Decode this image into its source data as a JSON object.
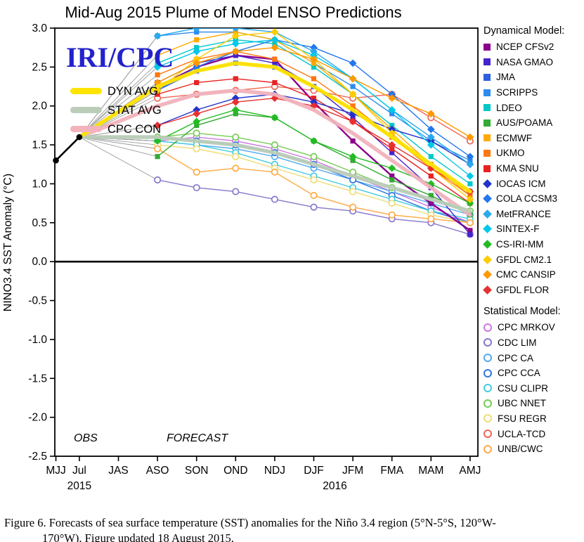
{
  "title": "Mid-Aug 2015 Plume of Model ENSO Predictions",
  "watermark": {
    "text": "IRI/CPC",
    "color": "#2222CC"
  },
  "obs_label": "OBS",
  "forecast_label": "FORECAST",
  "legend": {
    "dynamical_title": "Dynamical Model:",
    "statistical_title": "Statistical Model:"
  },
  "caption_line1": "Figure 6. Forecasts of sea surface temperature (SST) anomalies for the Niño 3.4 region (5°N-5°S, 120°W-",
  "caption_line2": "170°W). Figure updated 18 August 2015.",
  "chart_data": {
    "type": "line",
    "title": "Mid-Aug 2015 Plume of Model ENSO Predictions",
    "ylabel": "NINO3.4 SST Anomaly (°C)",
    "ylim": [
      -2.5,
      3.0
    ],
    "yticks": [
      "3.0",
      "2.5",
      "2.0",
      "1.5",
      "1.0",
      "0.5",
      "0.0",
      "-0.5",
      "-1.0",
      "-1.5",
      "-2.0",
      "-2.5"
    ],
    "x_categories": [
      "MJJ",
      "Jul",
      "JAS",
      "ASO",
      "SON",
      "OND",
      "NDJ",
      "DJF",
      "JFM",
      "FMA",
      "MAM",
      "AMJ"
    ],
    "forecast_categories": [
      "ASO",
      "SON",
      "OND",
      "NDJ",
      "DJF",
      "JFM",
      "FMA",
      "MAM",
      "AMJ"
    ],
    "year_labels": [
      {
        "text": "2015",
        "anchor": "Jul"
      },
      {
        "text": "2016",
        "anchor": "DJF"
      }
    ],
    "grid": false,
    "legend_position": "right",
    "observed": {
      "categories": [
        "MJJ",
        "Jul"
      ],
      "values": [
        1.3,
        1.6
      ],
      "color": "#000000"
    },
    "averages": [
      {
        "name": "DYN AVG",
        "color": "#FFE400",
        "values": [
          2.25,
          2.45,
          2.55,
          2.5,
          2.25,
          1.95,
          1.6,
          1.25,
          0.9
        ]
      },
      {
        "name": "STAT AVG",
        "color": "#BBCDB9",
        "values": [
          1.6,
          1.55,
          1.5,
          1.4,
          1.25,
          1.1,
          0.95,
          0.8,
          0.65
        ]
      },
      {
        "name": "CPC CON",
        "color": "#F2B3BC",
        "values": [
          2.0,
          2.15,
          2.2,
          2.15,
          1.95,
          1.65,
          1.3,
          0.95,
          0.6
        ]
      }
    ],
    "dynamical_series": [
      {
        "name": "NCEP CFSv2",
        "marker": "square",
        "color": "#8B008B",
        "values": [
          2.25,
          2.5,
          2.65,
          2.6,
          2.05,
          1.55,
          1.1,
          0.75,
          0.4
        ]
      },
      {
        "name": "NASA GMAO",
        "marker": "square",
        "color": "#4422CC",
        "values": [
          2.3,
          2.55,
          2.65,
          2.55,
          2.25,
          1.85,
          1.4,
          0.95,
          0.35
        ]
      },
      {
        "name": "JMA",
        "marker": "square",
        "color": "#2E5FE0",
        "values": [
          2.2,
          2.45,
          2.55,
          2.5,
          2.25,
          1.95,
          1.6,
          1.25,
          0.9
        ]
      },
      {
        "name": "SCRIPPS",
        "marker": "square",
        "color": "#2B8CEE",
        "values": [
          2.9,
          2.95,
          2.95,
          2.85,
          2.55,
          2.25,
          1.9,
          1.55,
          1.3
        ]
      },
      {
        "name": "LDEO",
        "marker": "square",
        "color": "#00C8C8",
        "values": [
          2.55,
          2.75,
          2.85,
          2.8,
          2.5,
          2.15,
          1.75,
          1.35,
          1.0
        ]
      },
      {
        "name": "AUS/POAMA",
        "marker": "square",
        "color": "#33AA33",
        "values": [
          1.35,
          1.75,
          1.9,
          1.85,
          1.55,
          1.3,
          1.05,
          0.85,
          0.6
        ]
      },
      {
        "name": "ECMWF",
        "marker": "square",
        "color": "#FFAA00",
        "values": [
          2.65,
          2.85,
          2.95,
          2.85,
          2.55,
          2.15,
          1.7,
          1.25,
          0.85
        ]
      },
      {
        "name": "UKMO",
        "marker": "square",
        "color": "#FF7711",
        "values": [
          2.4,
          2.6,
          2.7,
          2.6,
          2.35,
          2.0,
          1.6,
          1.2,
          0.85
        ]
      },
      {
        "name": "KMA SNU",
        "marker": "square",
        "color": "#E82222",
        "values": [
          2.15,
          2.3,
          2.35,
          2.3,
          2.1,
          1.8,
          1.45,
          1.1,
          0.75
        ]
      },
      {
        "name": "IOCAS ICM",
        "marker": "diamond",
        "color": "#2233CC",
        "values": [
          1.75,
          1.95,
          2.1,
          2.15,
          2.05,
          1.9,
          1.7,
          1.55,
          1.25
        ]
      },
      {
        "name": "COLA CCSM3",
        "marker": "diamond",
        "color": "#2277EE",
        "values": [
          2.2,
          2.5,
          2.7,
          2.85,
          2.75,
          2.55,
          2.15,
          1.7,
          1.35
        ]
      },
      {
        "name": "MetFRANCE",
        "marker": "diamond",
        "color": "#29A8EE",
        "values": [
          2.9,
          3.0,
          3.0,
          2.95,
          2.7,
          2.35,
          1.95,
          1.6,
          1.25
        ]
      },
      {
        "name": "SINTEX-F",
        "marker": "diamond",
        "color": "#00C8E8",
        "values": [
          2.5,
          2.7,
          2.8,
          2.85,
          2.65,
          2.35,
          1.95,
          1.5,
          1.1
        ]
      },
      {
        "name": "CS-IRI-MM",
        "marker": "diamond",
        "color": "#22BB22",
        "values": [
          1.55,
          1.8,
          1.95,
          1.85,
          1.55,
          1.35,
          1.2,
          1.0,
          0.75
        ]
      },
      {
        "name": "GFDL CM2.1",
        "marker": "diamond",
        "color": "#FFCC00",
        "values": [
          2.2,
          2.6,
          2.9,
          2.95,
          2.6,
          2.15,
          1.65,
          1.2,
          0.8
        ]
      },
      {
        "name": "CMC CANSIP",
        "marker": "diamond",
        "color": "#FF9900",
        "values": [
          2.3,
          2.55,
          2.7,
          2.75,
          2.6,
          2.35,
          2.1,
          1.9,
          1.6
        ]
      },
      {
        "name": "GFDL FLOR",
        "marker": "diamond",
        "color": "#E83030",
        "values": [
          1.75,
          1.9,
          2.05,
          2.1,
          2.0,
          1.8,
          1.5,
          1.2,
          0.9
        ]
      }
    ],
    "statistical_series": [
      {
        "name": "CPC MRKOV",
        "marker": "circle-open",
        "color": "#CC77DD",
        "values": [
          1.55,
          1.6,
          1.55,
          1.45,
          1.3,
          1.1,
          0.9,
          0.7,
          0.5
        ]
      },
      {
        "name": "CDC LIM",
        "marker": "circle-open",
        "color": "#8877CC",
        "values": [
          1.05,
          0.95,
          0.9,
          0.8,
          0.7,
          0.65,
          0.55,
          0.5,
          0.35
        ]
      },
      {
        "name": "CPC CA",
        "marker": "circle-open",
        "color": "#55AAEE",
        "values": [
          1.55,
          1.5,
          1.45,
          1.35,
          1.2,
          1.05,
          0.9,
          0.75,
          0.6
        ]
      },
      {
        "name": "CPC CCA",
        "marker": "circle-open",
        "color": "#3377DD",
        "values": [
          1.6,
          1.55,
          1.5,
          1.4,
          1.25,
          1.05,
          0.85,
          0.65,
          0.5
        ]
      },
      {
        "name": "CSU CLIPR",
        "marker": "circle-open",
        "color": "#44CCDD",
        "values": [
          1.55,
          1.5,
          1.4,
          1.25,
          1.1,
          0.95,
          0.8,
          0.65,
          0.55
        ]
      },
      {
        "name": "UBC NNET",
        "marker": "circle-open",
        "color": "#77CC55",
        "values": [
          1.6,
          1.65,
          1.6,
          1.5,
          1.35,
          1.15,
          0.95,
          0.8,
          0.65
        ]
      },
      {
        "name": "FSU REGR",
        "marker": "circle-open",
        "color": "#EEDD77",
        "values": [
          1.5,
          1.45,
          1.35,
          1.2,
          1.05,
          0.9,
          0.75,
          0.6,
          0.5
        ]
      },
      {
        "name": "UCLA-TCD",
        "marker": "circle-open",
        "color": "#EE6655",
        "values": [
          2.1,
          2.15,
          2.2,
          2.25,
          2.2,
          2.1,
          2.15,
          1.85,
          1.55
        ]
      },
      {
        "name": "UNB/CWC",
        "marker": "circle-open",
        "color": "#FFAA44",
        "values": [
          1.45,
          1.15,
          1.2,
          1.15,
          0.85,
          0.7,
          0.6,
          0.55,
          0.5
        ]
      }
    ]
  }
}
